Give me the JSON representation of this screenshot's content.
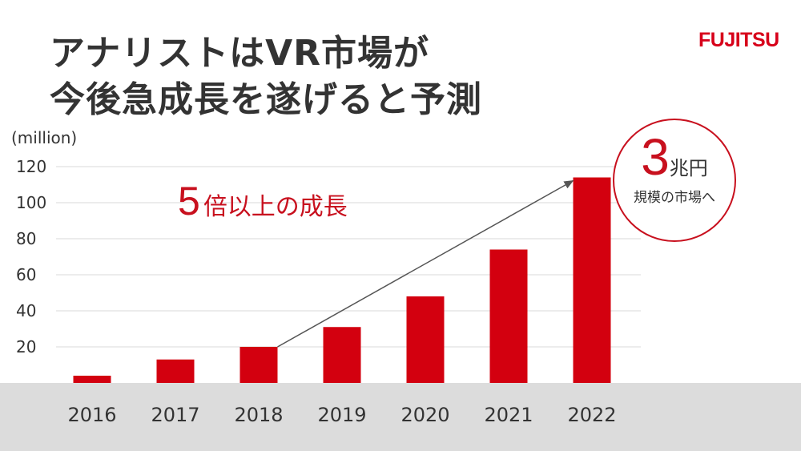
{
  "title": {
    "line1": "アナリストはVR市場が",
    "line2": "今後急成長を遂げると予測"
  },
  "logo": "FUJITSU",
  "callout": {
    "number": "5",
    "text": "倍以上の成長"
  },
  "badge": {
    "number": "3",
    "suffix": "兆円",
    "subtitle": "規模の市場へ"
  },
  "colors": {
    "bar": "#d3000f",
    "accent": "#c8101e",
    "text": "#333333",
    "band": "#dcdcdc"
  },
  "chart_data": {
    "type": "bar",
    "title": "",
    "xlabel": "",
    "ylabel": "(million)",
    "categories": [
      "2016",
      "2017",
      "2018",
      "2019",
      "2020",
      "2021",
      "2022"
    ],
    "values": [
      4,
      13,
      20,
      31,
      48,
      74,
      114
    ],
    "ylim": [
      0,
      120
    ],
    "yticks": [
      20,
      40,
      60,
      80,
      100,
      120
    ],
    "grid": true,
    "legend": "none",
    "annotation": {
      "type": "arrow",
      "from_category": "2018",
      "to_category": "2022",
      "text": "5倍以上の成長"
    }
  }
}
